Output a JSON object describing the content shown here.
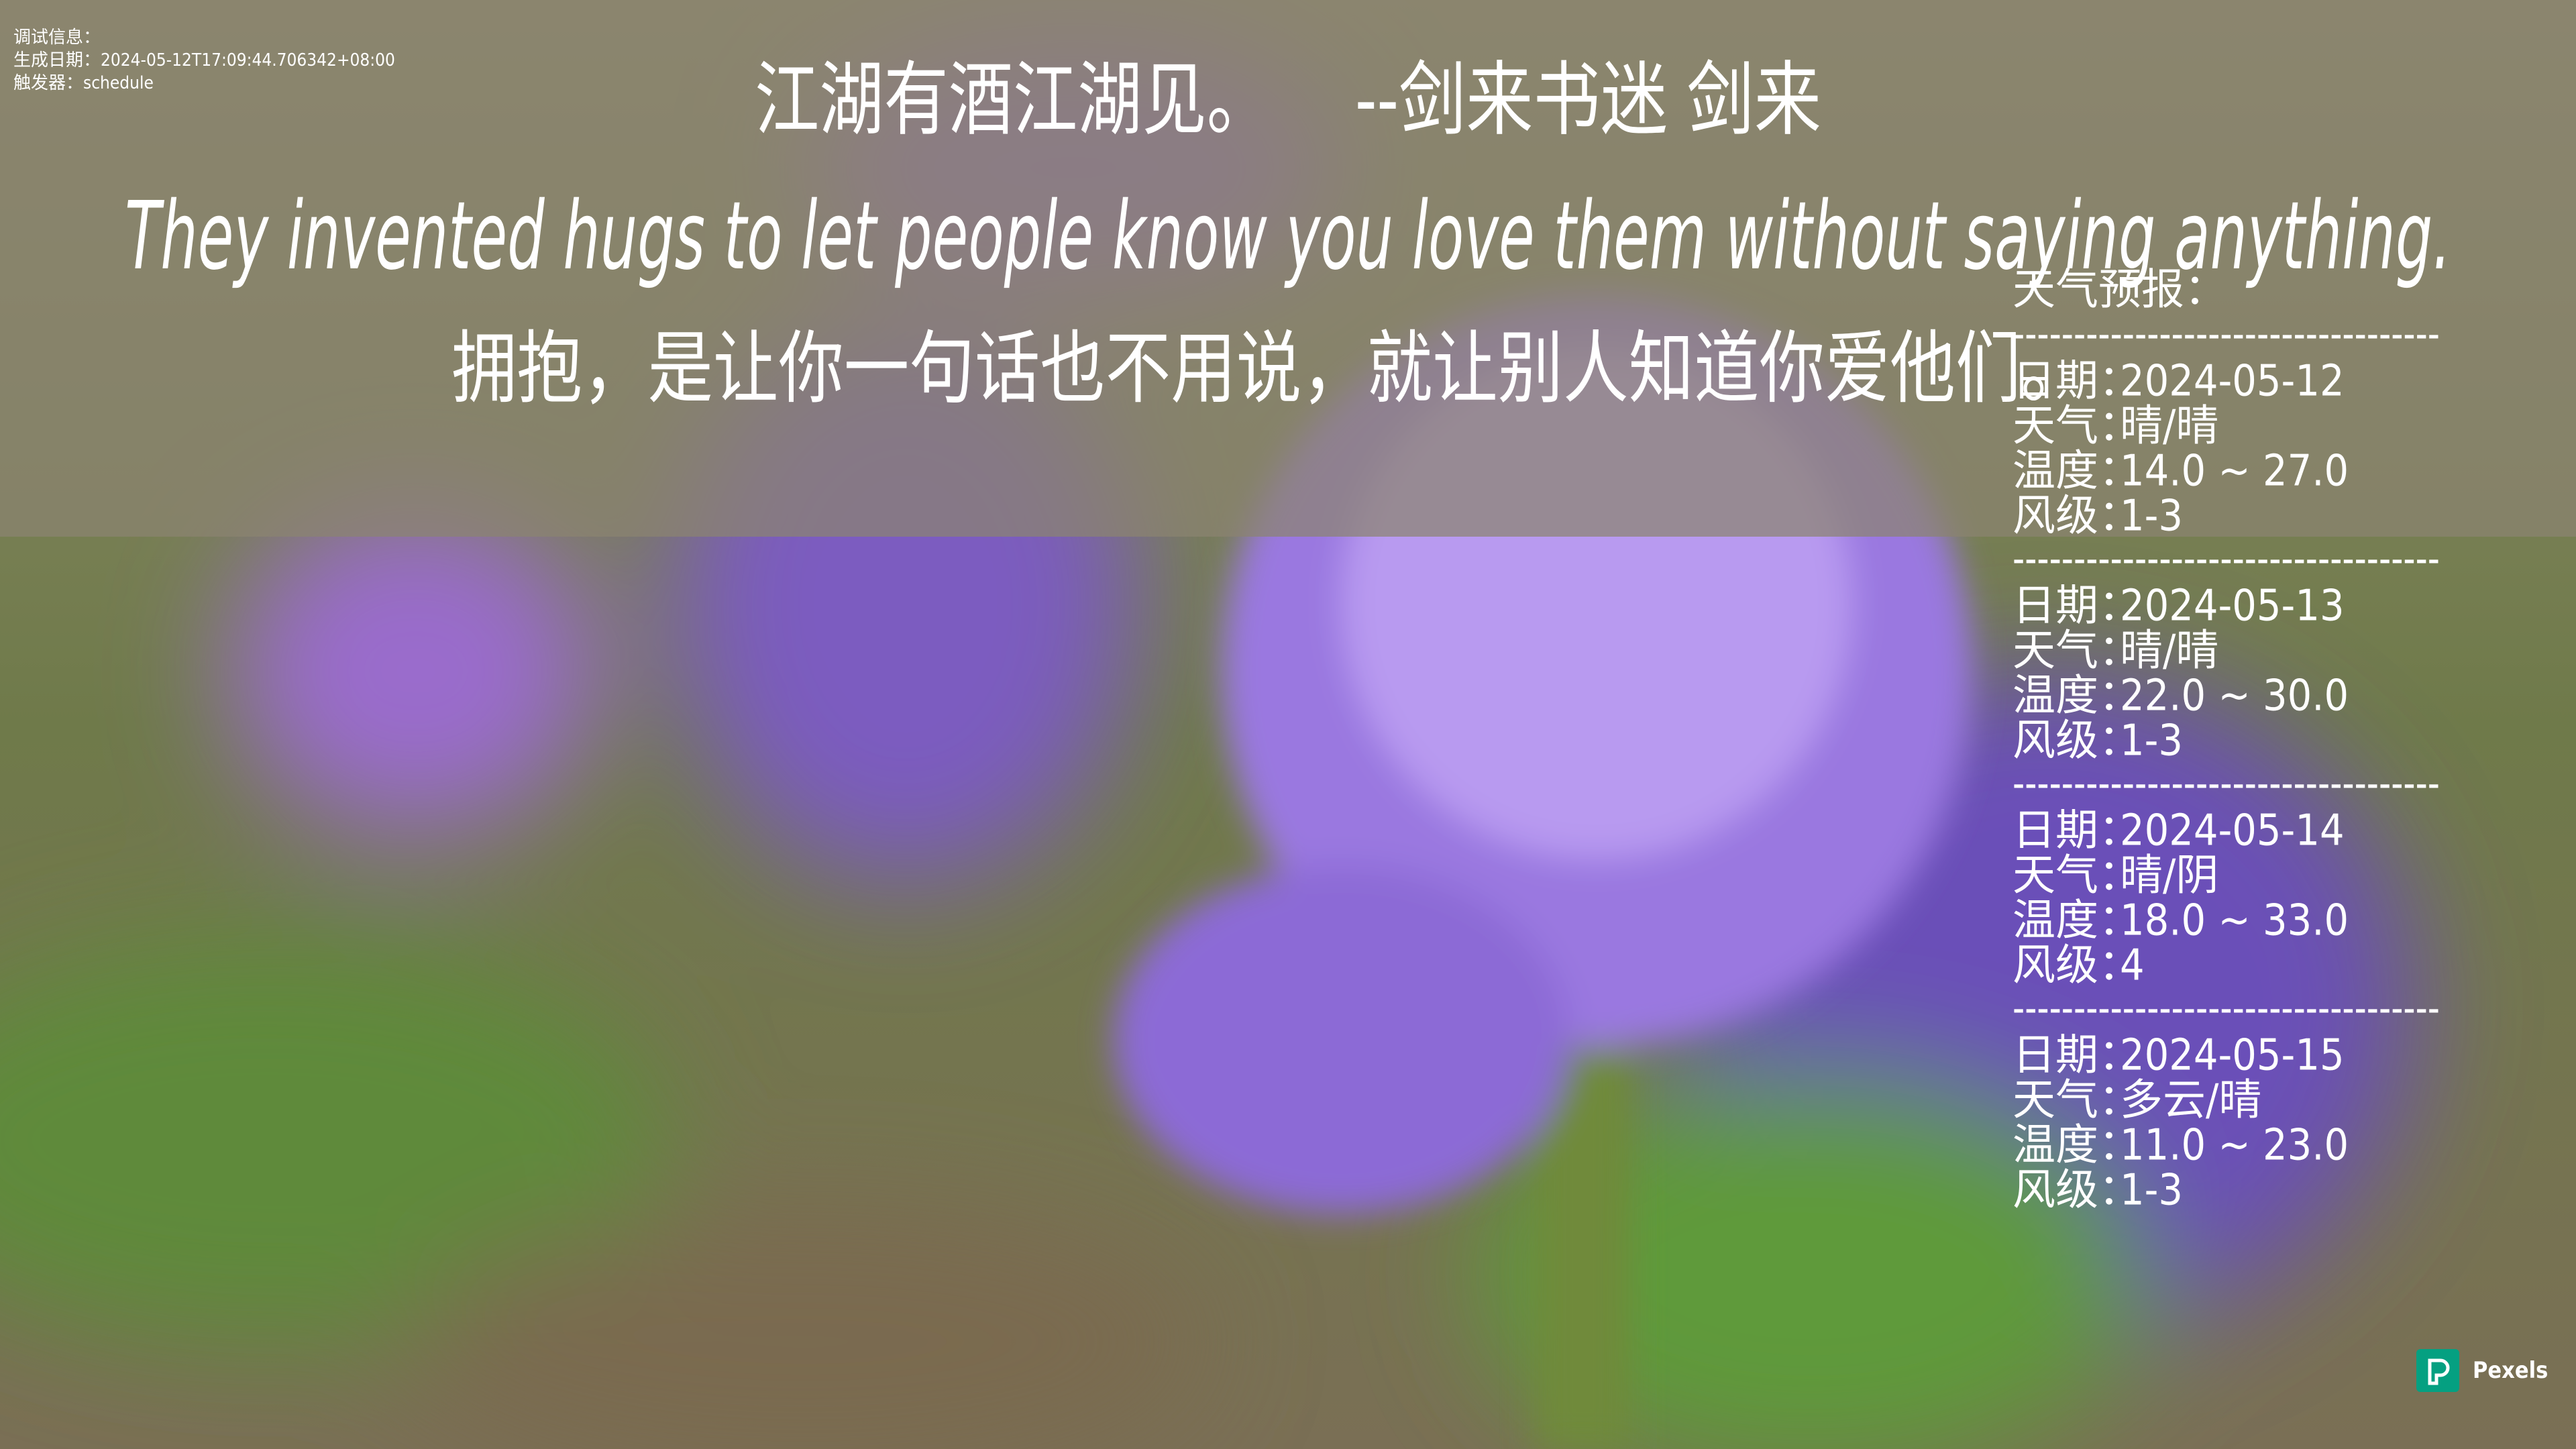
{
  "debug": {
    "title": "调试信息：",
    "generated": "生成日期：2024-05-12T17:09:44.706342+08:00",
    "trigger": "触发器：schedule"
  },
  "quote": {
    "text": "江湖有酒江湖见。",
    "source": "--剑来书迷 剑来"
  },
  "sentence": {
    "english": "They invented hugs to let people know you love them without saying anything.",
    "chinese": "拥抱，是让你一句话也不用说，就让别人知道你爱他们。"
  },
  "forecast": {
    "title": "天气预报：",
    "separator": "-----------------------------------",
    "labels": {
      "date": "日期：",
      "weather": "天气：",
      "temperature": "温度：",
      "wind": "风级："
    },
    "days": [
      {
        "date": "2024-05-12",
        "weather": "晴/晴",
        "temperature": "14.0 ~ 27.0",
        "wind": "1-3"
      },
      {
        "date": "2024-05-13",
        "weather": "晴/晴",
        "temperature": "22.0 ~ 30.0",
        "wind": "1-3"
      },
      {
        "date": "2024-05-14",
        "weather": "晴/阴",
        "temperature": "18.0 ~ 33.0",
        "wind": "4"
      },
      {
        "date": "2024-05-15",
        "weather": "多云/晴",
        "temperature": "11.0 ~ 23.0",
        "wind": "1-3"
      }
    ]
  },
  "credit": "Pexels"
}
